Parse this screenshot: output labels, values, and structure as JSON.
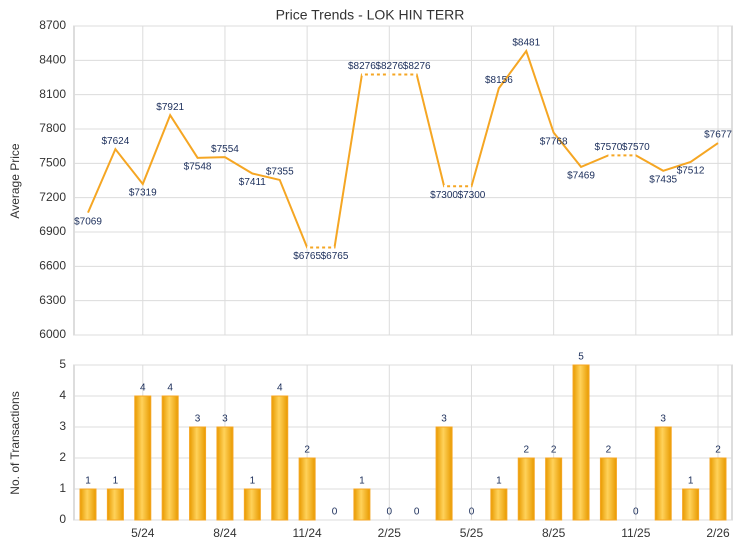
{
  "chart_data": [
    {
      "type": "line",
      "title": "Price Trends - LOK HIN TERR",
      "y_label": "Average Price",
      "categories": [
        null,
        null,
        "5/24",
        null,
        null,
        "8/24",
        null,
        null,
        "11/24",
        null,
        null,
        "2/25",
        null,
        null,
        "5/25",
        null,
        null,
        "8/25",
        null,
        null,
        "11/25",
        null,
        null,
        "2/26"
      ],
      "values": [
        7069,
        7624,
        7319,
        7921,
        7548,
        7554,
        7411,
        7355,
        6765,
        6765,
        8276,
        8276,
        8276,
        7300,
        7300,
        8156,
        8481,
        7768,
        7469,
        7570,
        7570,
        7435,
        7512,
        7677
      ],
      "value_labels": [
        "$7069",
        "$7624",
        "$7319",
        "$7921",
        "$7548",
        "$7554",
        "$7411",
        "$7355",
        "$6765",
        "$6765",
        "$8276",
        "$8276",
        "$8276",
        "$7300",
        "$7300",
        "$8156",
        "$8481",
        "$7768",
        "$7469",
        "$7570",
        "$7570",
        "$7435",
        "$7512",
        "$7677"
      ],
      "color": "#f5a623",
      "ylim": [
        6000,
        8700
      ],
      "yticks": [
        6000,
        6300,
        6600,
        6900,
        7200,
        7500,
        7800,
        8100,
        8400,
        8700
      ],
      "grid": true
    },
    {
      "type": "bar",
      "y_label": "No. of Transactions",
      "categories": [
        null,
        null,
        "5/24",
        null,
        null,
        "8/24",
        null,
        null,
        "11/24",
        null,
        null,
        "2/25",
        null,
        null,
        "5/25",
        null,
        null,
        "8/25",
        null,
        null,
        "11/25",
        null,
        null,
        "2/26"
      ],
      "values": [
        1,
        1,
        4,
        4,
        3,
        3,
        1,
        4,
        2,
        0,
        1,
        0,
        0,
        3,
        0,
        1,
        2,
        2,
        5,
        2,
        0,
        3,
        1,
        2
      ],
      "color": "#f5a623",
      "ylim": [
        0,
        5
      ],
      "yticks": [
        0,
        1,
        2,
        3,
        4,
        5
      ],
      "grid": true
    }
  ]
}
